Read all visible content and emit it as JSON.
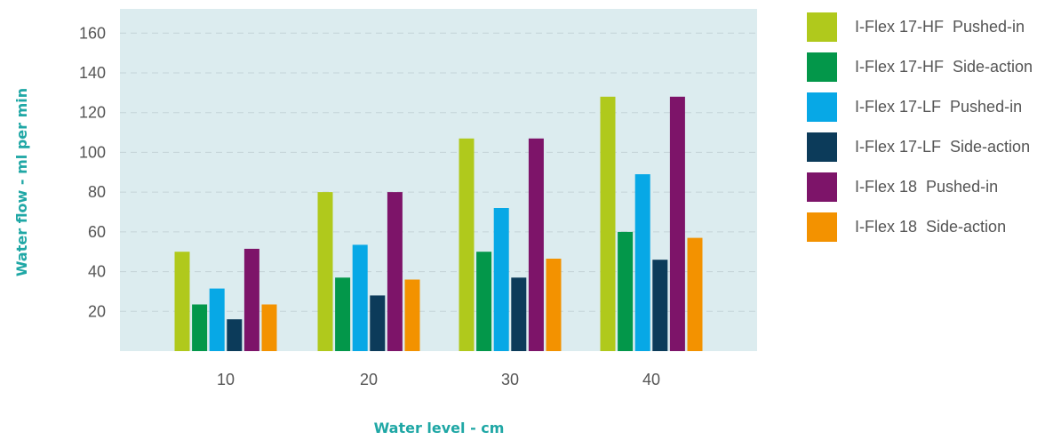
{
  "chart_data": {
    "type": "bar",
    "xlabel": "Water level - cm",
    "ylabel": "Water flow - ml per min",
    "categories": [
      "10",
      "20",
      "30",
      "40"
    ],
    "yticks": [
      20,
      40,
      60,
      80,
      100,
      120,
      140,
      160
    ],
    "ylim": [
      0,
      170
    ],
    "grid": true,
    "legend_position": "right",
    "plot_background": "#dcecef",
    "grid_color": "#c4d3d8",
    "series": [
      {
        "name": "I-Flex 17-HF  Pushed-in",
        "color": "#b0c91c",
        "values": [
          50,
          80,
          107,
          128
        ]
      },
      {
        "name": "I-Flex 17-HF  Side-action",
        "color": "#03974a",
        "values": [
          23.5,
          37,
          50,
          60
        ]
      },
      {
        "name": "I-Flex 17-LF  Pushed-in",
        "color": "#07a8e6",
        "values": [
          31.5,
          53.5,
          72,
          89
        ]
      },
      {
        "name": "I-Flex 17-LF  Side-action",
        "color": "#0c3b5a",
        "values": [
          16,
          28,
          37,
          46
        ]
      },
      {
        "name": "I-Flex 18  Pushed-in",
        "color": "#7d1469",
        "values": [
          51.5,
          80,
          107,
          128
        ]
      },
      {
        "name": "I-Flex 18  Side-action",
        "color": "#f39200",
        "values": [
          23.5,
          36,
          46.5,
          57
        ]
      }
    ]
  }
}
